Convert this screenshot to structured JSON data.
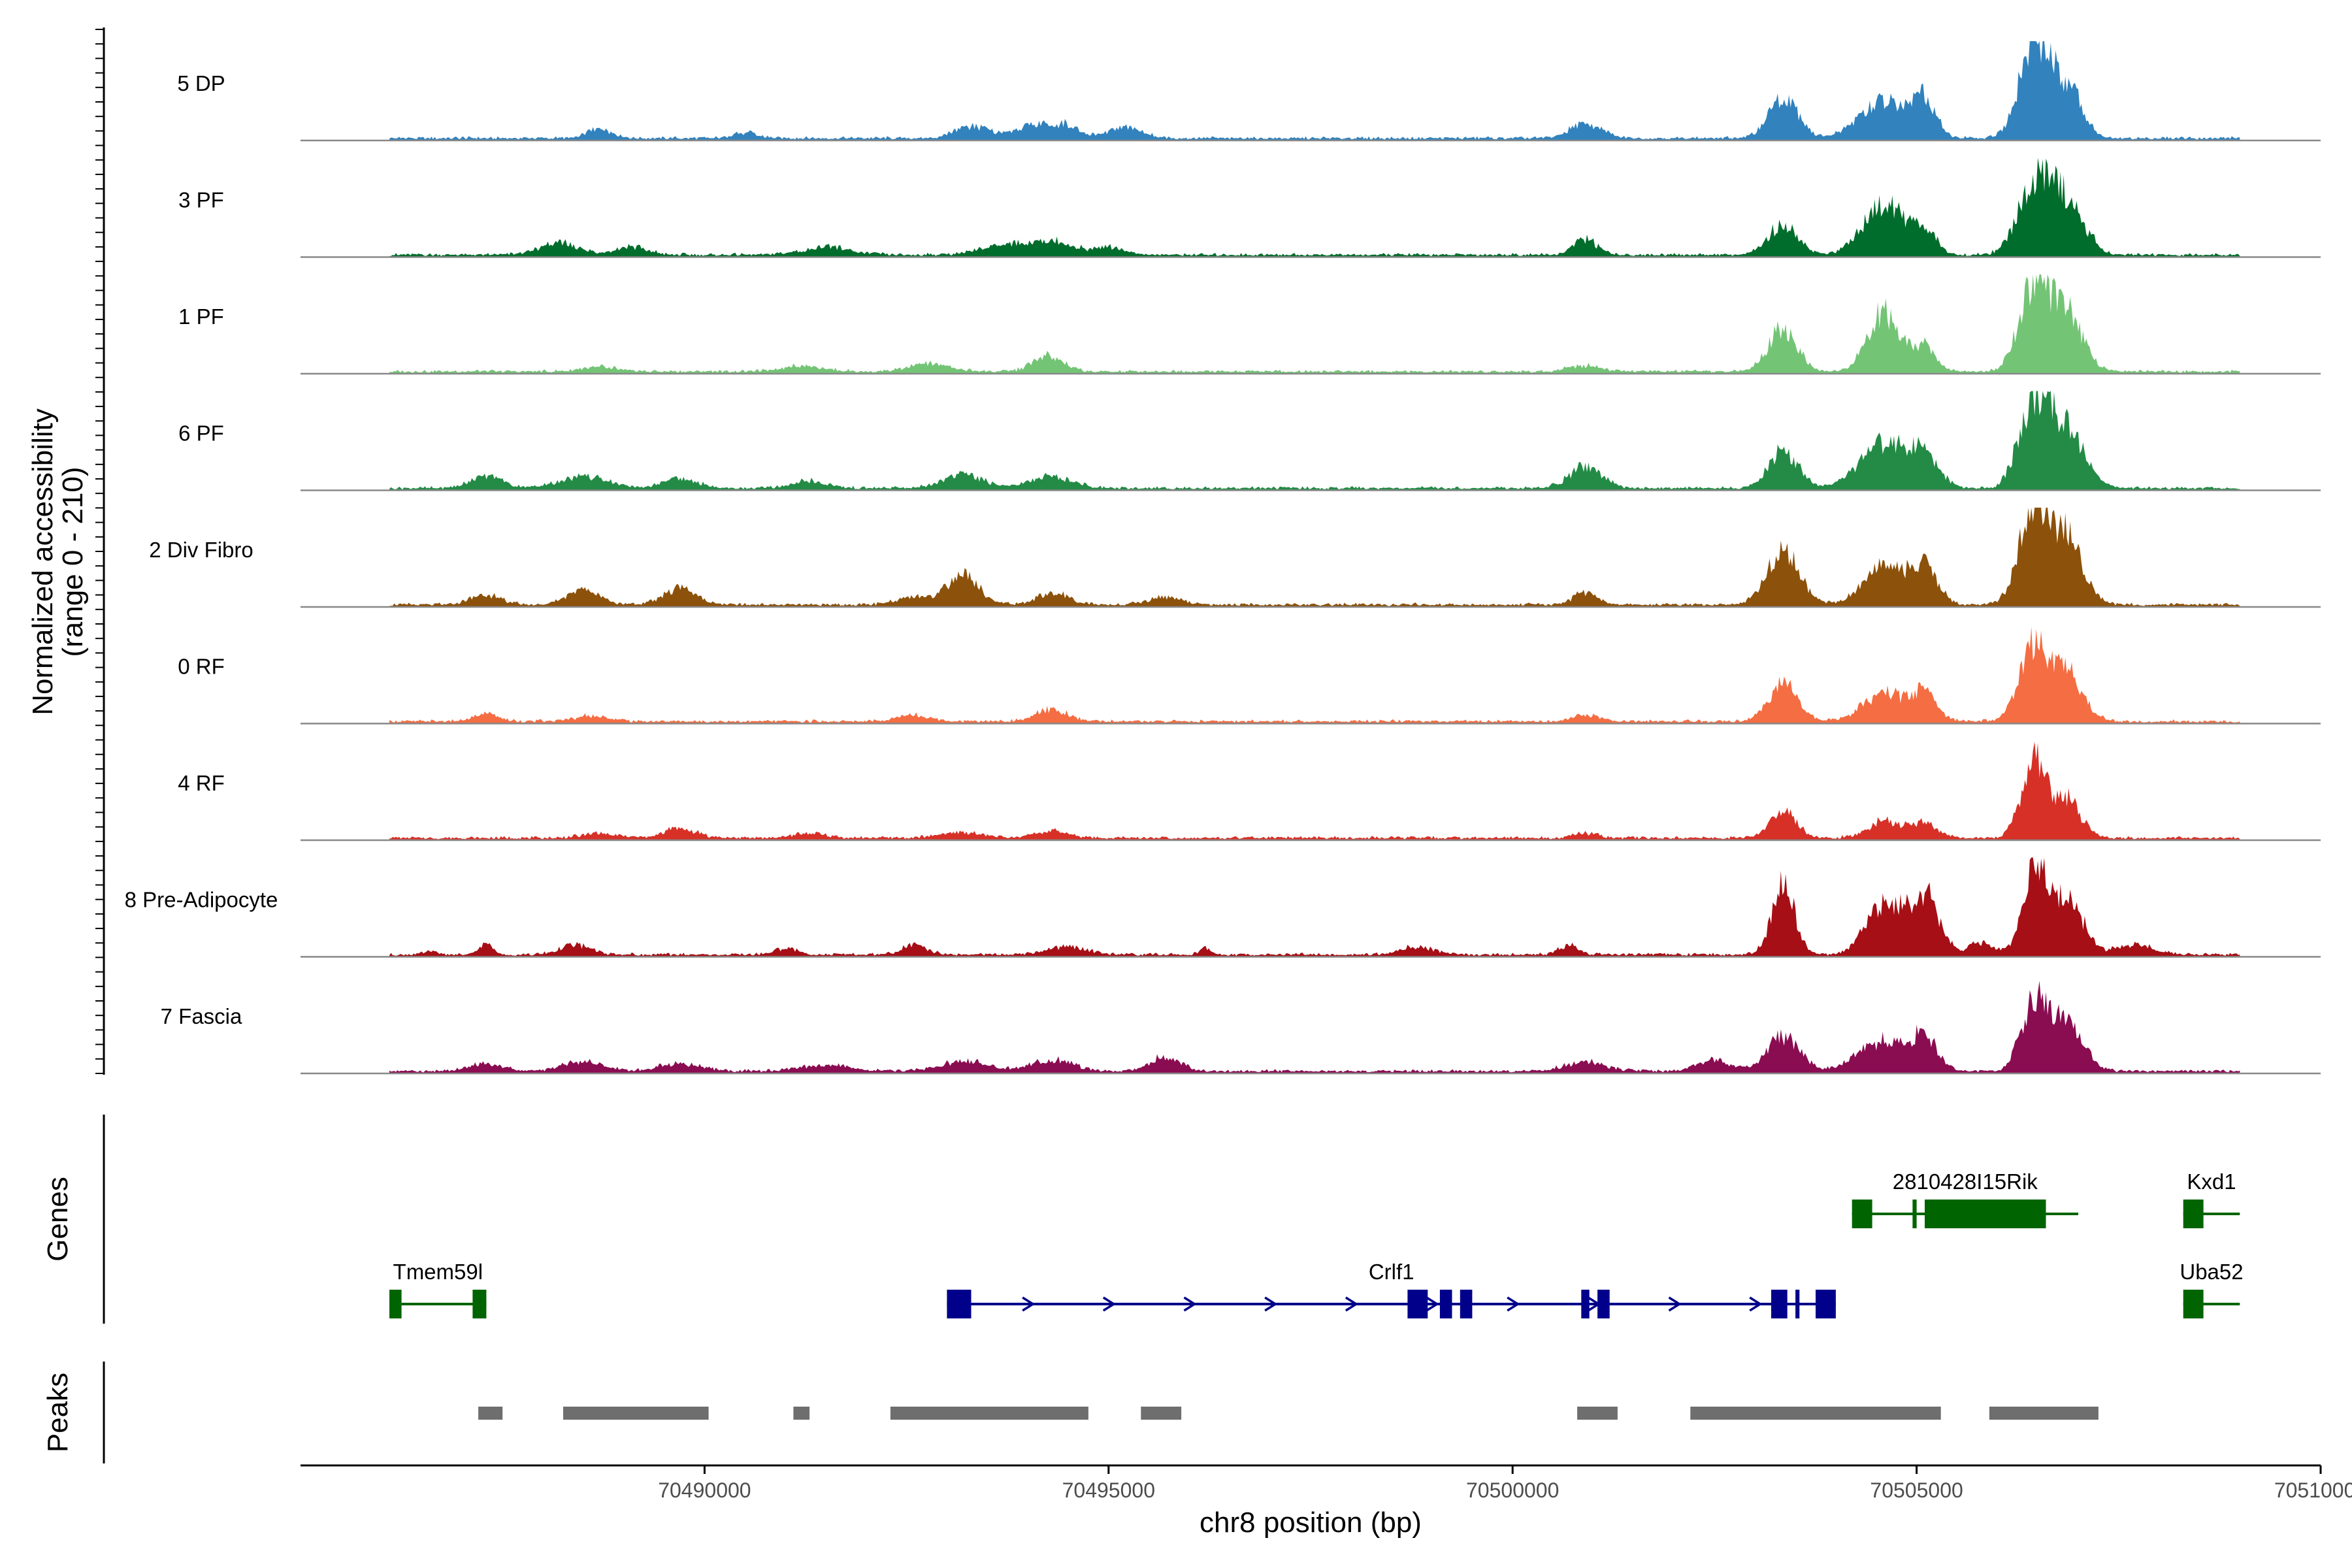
{
  "chart_data": {
    "type": "area",
    "title": "",
    "locus": "chr8",
    "xlabel": "chr8 position (bp)",
    "ylabel": "Normalized accessibility",
    "ylabel_range": "(range 0 - 210)",
    "ylim": [
      0,
      210
    ],
    "xlim": [
      70485000,
      70510000
    ],
    "x_ticks": [
      70490000,
      70495000,
      70500000,
      70505000,
      70510000
    ],
    "x_tick_labels": [
      "70490000",
      "70495000",
      "70500000",
      "70505000",
      "70510000"
    ],
    "coverage_start": 70486100,
    "coverage_end": 70509000,
    "tracks": [
      {
        "name": "5 DP",
        "color": "#3182bd",
        "peaks": [
          [
            70488700,
            0.1,
            150
          ],
          [
            70490500,
            0.06,
            150
          ],
          [
            70493300,
            0.12,
            200
          ],
          [
            70494100,
            0.14,
            250
          ],
          [
            70494500,
            0.1,
            150
          ],
          [
            70495200,
            0.12,
            200
          ],
          [
            70500900,
            0.14,
            200
          ],
          [
            70503350,
            0.42,
            180
          ],
          [
            70504600,
            0.4,
            300
          ],
          [
            70505100,
            0.35,
            140
          ],
          [
            70506450,
            0.96,
            180
          ],
          [
            70506850,
            0.55,
            180
          ]
        ]
      },
      {
        "name": "3 PF",
        "color": "#006d2c",
        "peaks": [
          [
            70488200,
            0.12,
            250
          ],
          [
            70489100,
            0.08,
            200
          ],
          [
            70491500,
            0.08,
            300
          ],
          [
            70493700,
            0.1,
            300
          ],
          [
            70494300,
            0.14,
            250
          ],
          [
            70495000,
            0.08,
            200
          ],
          [
            70500900,
            0.16,
            150
          ],
          [
            70503350,
            0.32,
            180
          ],
          [
            70504600,
            0.55,
            250
          ],
          [
            70505100,
            0.25,
            140
          ],
          [
            70506450,
            0.7,
            200
          ],
          [
            70506850,
            0.55,
            220
          ]
        ]
      },
      {
        "name": "1 PF",
        "color": "#74c476",
        "peaks": [
          [
            70488700,
            0.05,
            200
          ],
          [
            70491200,
            0.06,
            250
          ],
          [
            70492800,
            0.08,
            250
          ],
          [
            70494250,
            0.16,
            180
          ],
          [
            70500900,
            0.06,
            200
          ],
          [
            70503350,
            0.45,
            180
          ],
          [
            70504600,
            0.62,
            200
          ],
          [
            70505100,
            0.25,
            140
          ],
          [
            70506450,
            0.85,
            180
          ],
          [
            70506850,
            0.6,
            200
          ]
        ]
      },
      {
        "name": "6 PF",
        "color": "#238b45",
        "peaks": [
          [
            70487300,
            0.12,
            200
          ],
          [
            70488500,
            0.12,
            300
          ],
          [
            70489700,
            0.1,
            200
          ],
          [
            70491300,
            0.08,
            200
          ],
          [
            70493200,
            0.14,
            250
          ],
          [
            70494300,
            0.12,
            250
          ],
          [
            70500900,
            0.22,
            200
          ],
          [
            70503350,
            0.38,
            180
          ],
          [
            70504600,
            0.45,
            300
          ],
          [
            70505100,
            0.28,
            180
          ],
          [
            70506450,
            0.88,
            180
          ],
          [
            70506850,
            0.6,
            220
          ]
        ]
      },
      {
        "name": "2 Div Fibro",
        "color": "#8c510a",
        "peaks": [
          [
            70487300,
            0.1,
            180
          ],
          [
            70488500,
            0.15,
            200
          ],
          [
            70489700,
            0.18,
            200
          ],
          [
            70492600,
            0.08,
            200
          ],
          [
            70493200,
            0.3,
            200
          ],
          [
            70494300,
            0.12,
            200
          ],
          [
            70495700,
            0.08,
            200
          ],
          [
            70500900,
            0.12,
            150
          ],
          [
            70503350,
            0.55,
            200
          ],
          [
            70504600,
            0.42,
            250
          ],
          [
            70505100,
            0.38,
            160
          ],
          [
            70506450,
            0.98,
            180
          ],
          [
            70506850,
            0.7,
            200
          ]
        ]
      },
      {
        "name": "0 RF",
        "color": "#f46d43",
        "peaks": [
          [
            70487300,
            0.08,
            150
          ],
          [
            70488600,
            0.06,
            200
          ],
          [
            70492600,
            0.06,
            200
          ],
          [
            70494300,
            0.12,
            200
          ],
          [
            70500900,
            0.07,
            150
          ],
          [
            70503350,
            0.4,
            180
          ],
          [
            70504600,
            0.3,
            250
          ],
          [
            70505100,
            0.28,
            150
          ],
          [
            70506450,
            0.75,
            180
          ],
          [
            70506850,
            0.48,
            200
          ]
        ]
      },
      {
        "name": "4 RF",
        "color": "#d73027",
        "peaks": [
          [
            70488700,
            0.05,
            200
          ],
          [
            70489700,
            0.1,
            200
          ],
          [
            70491300,
            0.05,
            200
          ],
          [
            70493200,
            0.06,
            250
          ],
          [
            70494300,
            0.07,
            200
          ],
          [
            70500900,
            0.05,
            150
          ],
          [
            70503350,
            0.28,
            160
          ],
          [
            70504600,
            0.18,
            200
          ],
          [
            70505100,
            0.16,
            160
          ],
          [
            70506450,
            0.8,
            150
          ],
          [
            70506850,
            0.4,
            180
          ]
        ]
      },
      {
        "name": "8 Pre-Adipocyte",
        "color": "#a50f15",
        "peaks": [
          [
            70486600,
            0.04,
            80
          ],
          [
            70487300,
            0.12,
            80
          ],
          [
            70488400,
            0.1,
            180
          ],
          [
            70491000,
            0.06,
            150
          ],
          [
            70492600,
            0.1,
            150
          ],
          [
            70494500,
            0.08,
            250
          ],
          [
            70496200,
            0.06,
            80
          ],
          [
            70498800,
            0.08,
            200
          ],
          [
            70500700,
            0.1,
            120
          ],
          [
            70503350,
            0.72,
            140
          ],
          [
            70504600,
            0.52,
            220
          ],
          [
            70505100,
            0.62,
            180
          ],
          [
            70505800,
            0.12,
            150
          ],
          [
            70506450,
            0.95,
            140
          ],
          [
            70506850,
            0.6,
            200
          ],
          [
            70507700,
            0.1,
            220
          ]
        ]
      },
      {
        "name": "7 Fascia",
        "color": "#8a0c51",
        "peaks": [
          [
            70487300,
            0.08,
            200
          ],
          [
            70488500,
            0.1,
            250
          ],
          [
            70489700,
            0.08,
            250
          ],
          [
            70491500,
            0.06,
            300
          ],
          [
            70493200,
            0.1,
            300
          ],
          [
            70494300,
            0.12,
            250
          ],
          [
            70495700,
            0.14,
            200
          ],
          [
            70500900,
            0.1,
            250
          ],
          [
            70502500,
            0.12,
            200
          ],
          [
            70503350,
            0.35,
            200
          ],
          [
            70504600,
            0.32,
            300
          ],
          [
            70505100,
            0.3,
            160
          ],
          [
            70506450,
            0.68,
            160
          ],
          [
            70506850,
            0.5,
            200
          ]
        ]
      }
    ],
    "genes": [
      {
        "name": "Tmem59l",
        "start": 70486100,
        "end": 70487300,
        "strand": "-",
        "row": 2,
        "color": "#006400",
        "exons": [
          [
            70486100,
            70486250
          ],
          [
            70487130,
            70487300
          ]
        ]
      },
      {
        "name": "Crlf1",
        "start": 70493000,
        "end": 70504000,
        "strand": "+",
        "row": 2,
        "color": "#00008b",
        "exons": [
          [
            70493000,
            70493300
          ],
          [
            70498700,
            70498950
          ],
          [
            70499100,
            70499250
          ],
          [
            70499350,
            70499500
          ],
          [
            70500850,
            70500950
          ],
          [
            70501050,
            70501200
          ],
          [
            70503200,
            70503400
          ],
          [
            70503500,
            70503550
          ],
          [
            70503750,
            70504000
          ]
        ]
      },
      {
        "name": "2810428I15Rik",
        "start": 70504200,
        "end": 70507000,
        "strand": "+",
        "row": 1,
        "color": "#006400",
        "exons": [
          [
            70504200,
            70504450
          ],
          [
            70504950,
            70505000
          ],
          [
            70505100,
            70506600
          ]
        ]
      },
      {
        "name": "Kxd1",
        "start": 70508300,
        "end": 70509000,
        "strand": "+",
        "row": 1,
        "color": "#006400",
        "exons": [
          [
            70508300,
            70508550
          ]
        ]
      },
      {
        "name": "Uba52",
        "start": 70508300,
        "end": 70509000,
        "strand": "+",
        "row": 2,
        "color": "#006400",
        "exons": [
          [
            70508300,
            70508550
          ]
        ]
      }
    ],
    "peak_regions": [
      [
        70487200,
        70487500
      ],
      [
        70488250,
        70490050
      ],
      [
        70491100,
        70491300
      ],
      [
        70492300,
        70494750
      ],
      [
        70495400,
        70495900
      ],
      [
        70500800,
        70501300
      ],
      [
        70502200,
        70505300
      ],
      [
        70505900,
        70507250
      ]
    ],
    "panel_labels": [
      "Genes",
      "Peaks"
    ]
  }
}
